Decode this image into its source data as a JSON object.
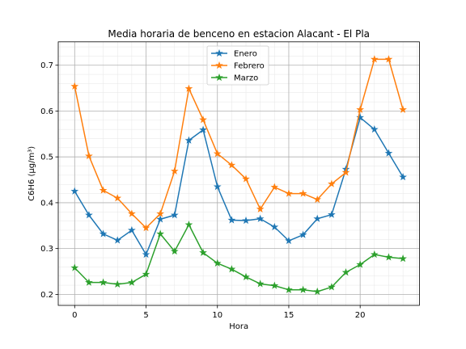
{
  "chart_data": {
    "type": "line",
    "title": "Media horaria de benceno en estacion Alacant - El Pla",
    "xlabel": "Hora",
    "ylabel": "C6H6 (µg/m³)",
    "x": [
      0,
      1,
      2,
      3,
      4,
      5,
      6,
      7,
      8,
      9,
      10,
      11,
      12,
      13,
      14,
      15,
      16,
      17,
      18,
      19,
      20,
      21,
      22,
      23
    ],
    "xlim": [
      -1.15,
      24.15
    ],
    "ylim": [
      0.176,
      0.751
    ],
    "xticks": [
      0,
      5,
      10,
      15,
      20
    ],
    "yticks": [
      0.2,
      0.3,
      0.4,
      0.5,
      0.6,
      0.7
    ],
    "ytick_labels": [
      "0.2",
      "0.3",
      "0.4",
      "0.5",
      "0.6",
      "0.7"
    ],
    "grid": true,
    "minor_grid": true,
    "legend_position": "top-center",
    "marker": "star",
    "series": [
      {
        "name": "Enero",
        "color": "#1f77b4",
        "values": [
          0.425,
          0.373,
          0.332,
          0.318,
          0.34,
          0.287,
          0.364,
          0.373,
          0.536,
          0.559,
          0.435,
          0.362,
          0.361,
          0.365,
          0.347,
          0.317,
          0.33,
          0.365,
          0.374,
          0.473,
          0.586,
          0.56,
          0.508,
          0.456
        ]
      },
      {
        "name": "Febrero",
        "color": "#ff7f0e",
        "values": [
          0.654,
          0.502,
          0.427,
          0.41,
          0.376,
          0.345,
          0.376,
          0.469,
          0.649,
          0.581,
          0.507,
          0.482,
          0.452,
          0.386,
          0.434,
          0.42,
          0.42,
          0.407,
          0.441,
          0.466,
          0.603,
          0.713,
          0.713,
          0.603
        ]
      },
      {
        "name": "Marzo",
        "color": "#2ca02c",
        "values": [
          0.258,
          0.226,
          0.226,
          0.222,
          0.226,
          0.244,
          0.332,
          0.294,
          0.352,
          0.291,
          0.268,
          0.255,
          0.238,
          0.223,
          0.219,
          0.21,
          0.21,
          0.206,
          0.216,
          0.248,
          0.265,
          0.287,
          0.281,
          0.278
        ]
      }
    ]
  }
}
